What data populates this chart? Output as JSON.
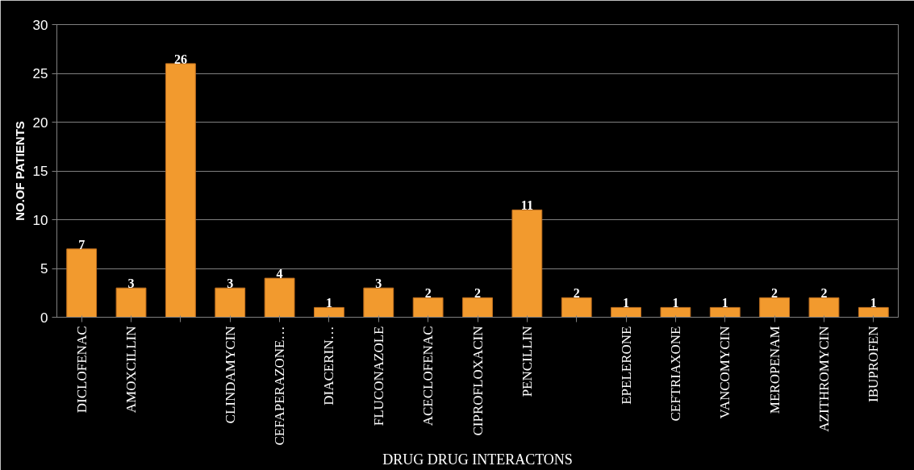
{
  "chart_data": {
    "type": "bar",
    "xlabel": "DRUG DRUG INTERACTONS",
    "ylabel": "NO.OF PATIENTS",
    "categories": [
      "DICLOFENAC",
      "AMOXCILLIN",
      null,
      "CLINDAMYCIN",
      "CEFAPERAZONE…",
      "DIACERIN…",
      "FLUCONAZOLE",
      "ACECLOFENAC",
      "CIPROFLOXACIN",
      "PENCILLIN",
      null,
      "EPELERONE",
      "CEFTRIAXONE",
      "VANCOMYCIN",
      "MEROPENAM",
      "AZITHROMYCIN",
      "IBUPROFEN"
    ],
    "values": [
      7,
      3,
      26,
      3,
      4,
      1,
      3,
      2,
      2,
      11,
      2,
      1,
      1,
      1,
      2,
      2,
      1
    ],
    "color": "#f29a2e",
    "ylim": [
      0,
      30
    ],
    "yticks": [
      0,
      5,
      10,
      15,
      20,
      25,
      30
    ],
    "grid": "y",
    "data_labels": true
  }
}
